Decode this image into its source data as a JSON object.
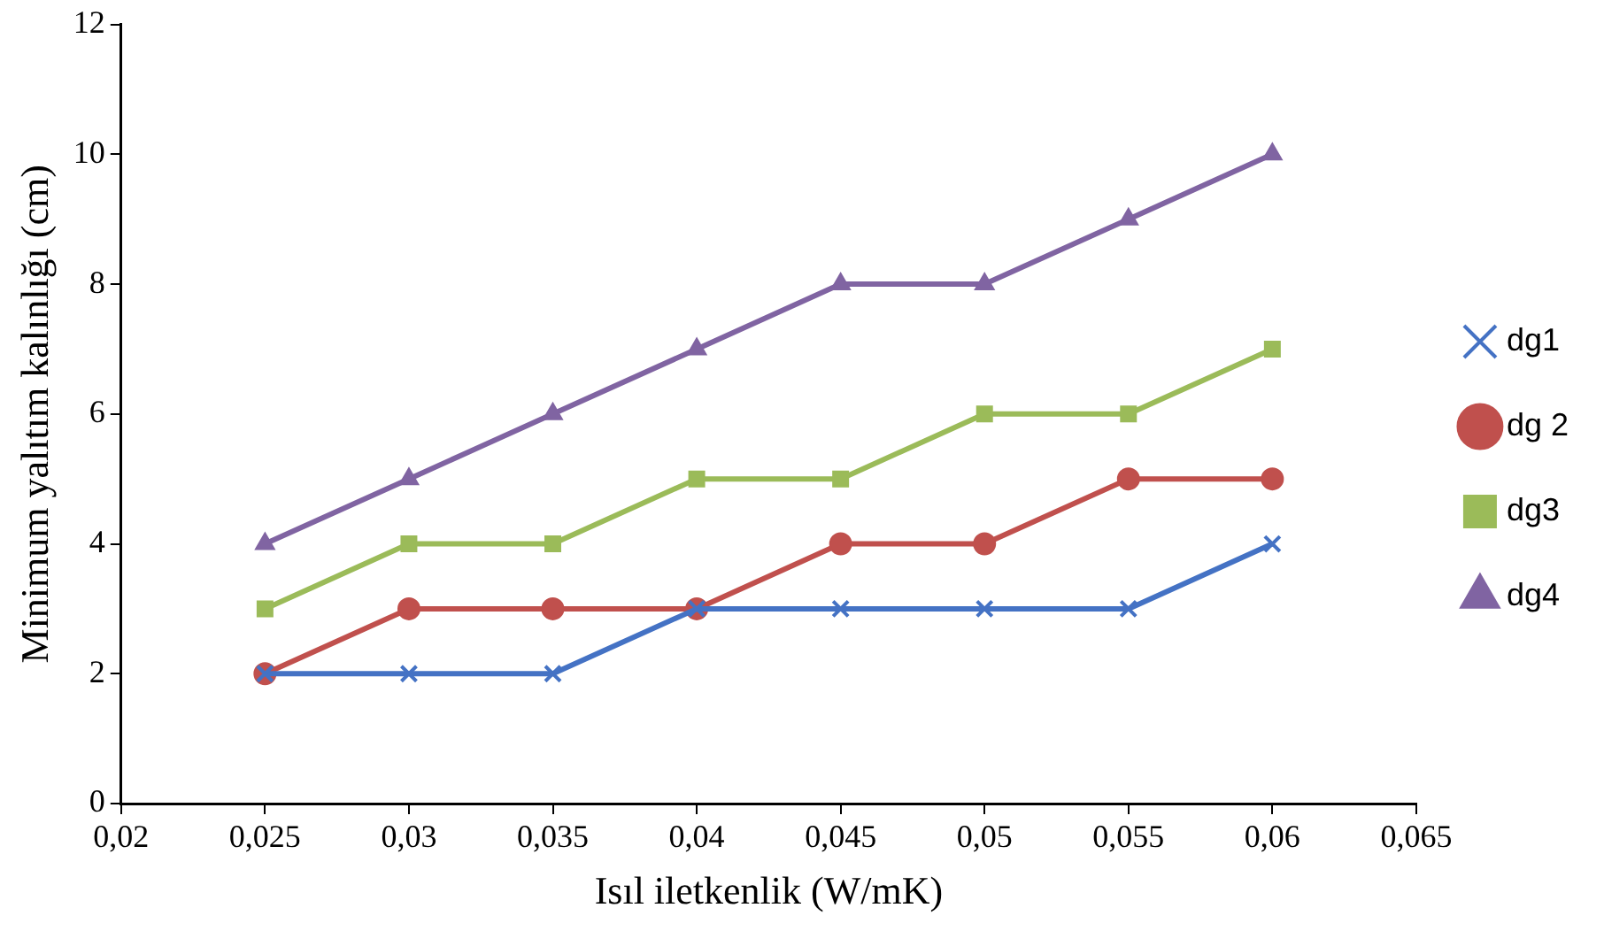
{
  "chart_data": {
    "type": "line",
    "xlabel": "Isıl iletkenlik (W/mK)",
    "ylabel": "Minimum yalıtım kalınlığı (cm)",
    "x": [
      0.025,
      0.03,
      0.035,
      0.04,
      0.045,
      0.05,
      0.055,
      0.06
    ],
    "series": [
      {
        "name": "dg1",
        "color": "#4472c4",
        "marker": "cross",
        "values": [
          2,
          2,
          2,
          3,
          3,
          3,
          3,
          4
        ]
      },
      {
        "name": "dg 2",
        "color": "#c0504d",
        "marker": "circle",
        "values": [
          2,
          3,
          3,
          3,
          4,
          4,
          5,
          5
        ]
      },
      {
        "name": "dg3",
        "color": "#9bbb59",
        "marker": "square",
        "values": [
          3,
          4,
          4,
          5,
          5,
          6,
          6,
          7
        ]
      },
      {
        "name": "dg4",
        "color": "#8064a2",
        "marker": "triangle",
        "values": [
          4,
          5,
          6,
          7,
          8,
          8,
          9,
          10
        ]
      }
    ],
    "xlim": [
      0.02,
      0.065
    ],
    "xticks": [
      {
        "value": 0.02,
        "label": "0,02"
      },
      {
        "value": 0.025,
        "label": "0,025"
      },
      {
        "value": 0.03,
        "label": "0,03"
      },
      {
        "value": 0.035,
        "label": "0,035"
      },
      {
        "value": 0.04,
        "label": "0,04"
      },
      {
        "value": 0.045,
        "label": "0,045"
      },
      {
        "value": 0.05,
        "label": "0,05"
      },
      {
        "value": 0.055,
        "label": "0,055"
      },
      {
        "value": 0.06,
        "label": "0,06"
      },
      {
        "value": 0.065,
        "label": "0,065"
      }
    ],
    "ylim": [
      0,
      12
    ],
    "yticks": [
      0,
      2,
      4,
      6,
      8,
      10,
      12
    ],
    "grid": false,
    "legend": "right",
    "line_style": "solid"
  }
}
